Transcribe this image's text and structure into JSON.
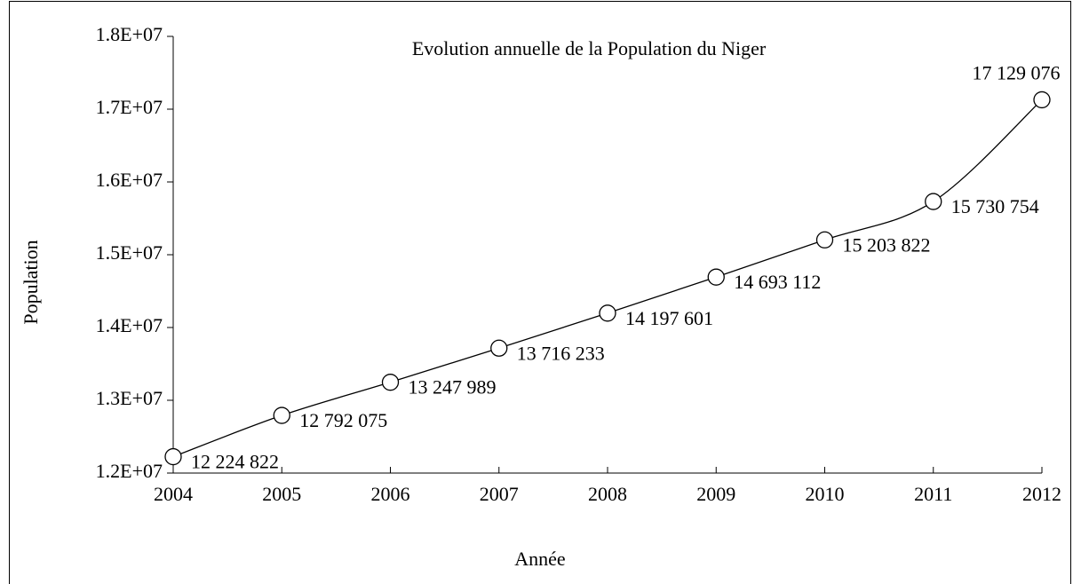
{
  "chart_data": {
    "type": "line",
    "title": "Evolution annuelle de la Population du Niger",
    "xlabel": "Année",
    "ylabel": "Population",
    "x": [
      2004,
      2005,
      2006,
      2007,
      2008,
      2009,
      2010,
      2011,
      2012
    ],
    "series": [
      {
        "name": "Population",
        "color": "#000000",
        "values": [
          12224822,
          12792075,
          13247989,
          13716233,
          14197601,
          14693112,
          15203822,
          15730754,
          17129076
        ],
        "value_labels": [
          "12 224 822",
          "12 792 075",
          "13 247 989",
          "13 716 233",
          "14 197 601",
          "14 693 112",
          "15 203 822",
          "15 730 754",
          "17 129 076"
        ]
      }
    ],
    "xlim": [
      2004,
      2012
    ],
    "xticks": [
      2004,
      2005,
      2006,
      2007,
      2008,
      2009,
      2010,
      2011,
      2012
    ],
    "ylim": [
      12000000,
      18000000
    ],
    "yticks": [
      {
        "value": 12000000,
        "label": "1.2E+07"
      },
      {
        "value": 13000000,
        "label": "1.3E+07"
      },
      {
        "value": 14000000,
        "label": "1.4E+07"
      },
      {
        "value": 15000000,
        "label": "1.5E+07"
      },
      {
        "value": 16000000,
        "label": "1.6E+07"
      },
      {
        "value": 17000000,
        "label": "1.7E+07"
      },
      {
        "value": 18000000,
        "label": "1.8E+07"
      }
    ],
    "grid": false,
    "smooth": true
  }
}
